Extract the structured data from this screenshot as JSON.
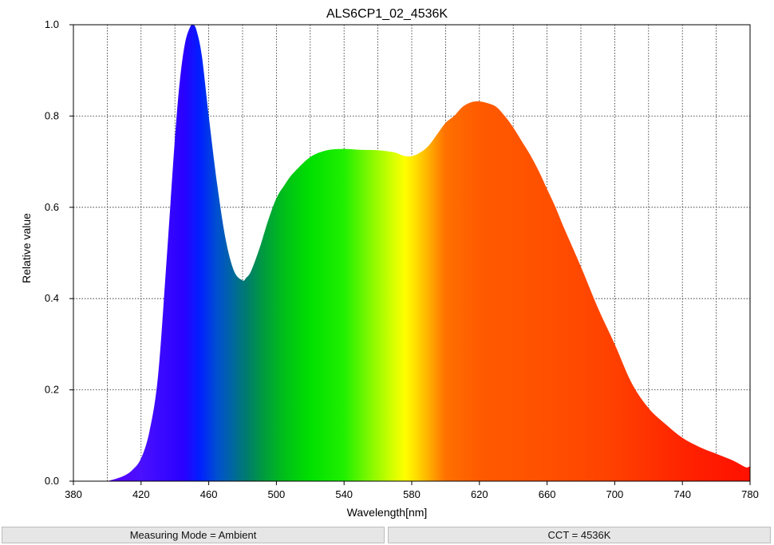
{
  "chart_data": {
    "type": "area",
    "title": "ALS6CP1_02_4536K",
    "xlabel": "Wavelength[nm]",
    "ylabel": "Relative value",
    "xlim": [
      380,
      780
    ],
    "ylim": [
      0,
      1.0
    ],
    "xticks": [
      380,
      420,
      460,
      500,
      540,
      580,
      620,
      660,
      700,
      740,
      780
    ],
    "xtick_labels": [
      "380",
      "420",
      "460",
      "500",
      "540",
      "580",
      "620",
      "660",
      "700",
      "740",
      "780"
    ],
    "yticks": [
      0,
      0.2,
      0.4,
      0.6,
      0.8,
      1.0
    ],
    "ytick_labels": [
      "0.0",
      "0.2",
      "0.4",
      "0.6",
      "0.8",
      "1.0"
    ],
    "grid": true,
    "x_minor_grid_step": 20,
    "fill": "visible-spectrum gradient",
    "series": [
      {
        "x": [
          400,
          405,
          410,
          415,
          420,
          425,
          430,
          435,
          440,
          443,
          446,
          449,
          451,
          453,
          456,
          460,
          465,
          470,
          475,
          480,
          482,
          485,
          490,
          495,
          500,
          505,
          510,
          520,
          530,
          540,
          550,
          560,
          570,
          575,
          580,
          585,
          590,
          595,
          600,
          605,
          610,
          615,
          620,
          625,
          630,
          635,
          640,
          645,
          650,
          655,
          660,
          665,
          670,
          680,
          690,
          700,
          710,
          720,
          730,
          740,
          750,
          760,
          770,
          775,
          778,
          780
        ],
        "values": [
          0.0,
          0.005,
          0.012,
          0.025,
          0.05,
          0.11,
          0.23,
          0.48,
          0.75,
          0.88,
          0.96,
          0.995,
          1.0,
          0.985,
          0.93,
          0.8,
          0.65,
          0.53,
          0.46,
          0.44,
          0.445,
          0.46,
          0.51,
          0.57,
          0.62,
          0.65,
          0.675,
          0.71,
          0.725,
          0.728,
          0.726,
          0.725,
          0.72,
          0.713,
          0.712,
          0.72,
          0.735,
          0.76,
          0.785,
          0.8,
          0.82,
          0.83,
          0.832,
          0.828,
          0.82,
          0.8,
          0.775,
          0.745,
          0.715,
          0.68,
          0.64,
          0.6,
          0.555,
          0.47,
          0.38,
          0.3,
          0.215,
          0.16,
          0.125,
          0.095,
          0.075,
          0.06,
          0.045,
          0.035,
          0.03,
          0.033
        ]
      }
    ]
  },
  "status": {
    "left": "Measuring Mode = Ambient",
    "right": "CCT = 4536K"
  }
}
